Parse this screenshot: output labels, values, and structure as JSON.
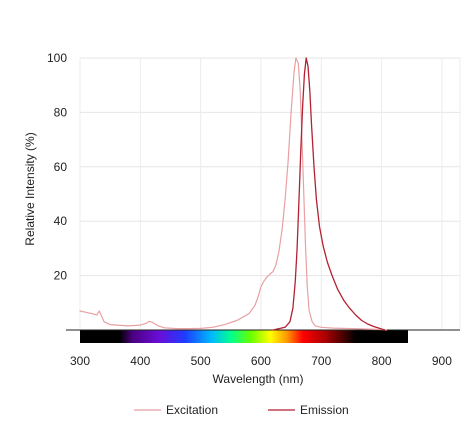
{
  "chart_data": {
    "type": "line",
    "title": "",
    "xlabel": "Wavelength (nm)",
    "ylabel": "Relative Intensity (%)",
    "xlim": [
      300,
      930
    ],
    "ylim": [
      0,
      100
    ],
    "x_ticks": [
      300,
      400,
      500,
      600,
      700,
      800,
      900
    ],
    "y_ticks": [
      20,
      40,
      60,
      80,
      100
    ],
    "grid": true,
    "legend_position": "bottom",
    "spectrum_bar": true,
    "series": [
      {
        "name": "Excitation",
        "color": "#e8a0a3",
        "points": [
          [
            300,
            7
          ],
          [
            310,
            6.5
          ],
          [
            320,
            6
          ],
          [
            328,
            5.5
          ],
          [
            332,
            7
          ],
          [
            336,
            5
          ],
          [
            340,
            3
          ],
          [
            350,
            2
          ],
          [
            380,
            1.5
          ],
          [
            400,
            1.8
          ],
          [
            410,
            2.5
          ],
          [
            415,
            3.2
          ],
          [
            420,
            2.8
          ],
          [
            430,
            1.5
          ],
          [
            440,
            0.8
          ],
          [
            460,
            0.5
          ],
          [
            480,
            0.5
          ],
          [
            500,
            0.6
          ],
          [
            520,
            1
          ],
          [
            540,
            2
          ],
          [
            560,
            3.5
          ],
          [
            580,
            6
          ],
          [
            590,
            9
          ],
          [
            595,
            12
          ],
          [
            600,
            16
          ],
          [
            605,
            18
          ],
          [
            610,
            19.5
          ],
          [
            615,
            20.5
          ],
          [
            620,
            21.5
          ],
          [
            625,
            24
          ],
          [
            630,
            29
          ],
          [
            635,
            37
          ],
          [
            640,
            48
          ],
          [
            645,
            62
          ],
          [
            650,
            80
          ],
          [
            655,
            95
          ],
          [
            658,
            100
          ],
          [
            662,
            98
          ],
          [
            665,
            88
          ],
          [
            668,
            70
          ],
          [
            671,
            50
          ],
          [
            674,
            30
          ],
          [
            677,
            15
          ],
          [
            680,
            7
          ],
          [
            685,
            3
          ],
          [
            690,
            1.5
          ],
          [
            700,
            1
          ],
          [
            720,
            0.7
          ],
          [
            750,
            0.5
          ],
          [
            800,
            0.2
          ],
          [
            808,
            0
          ]
        ]
      },
      {
        "name": "Emission",
        "color": "#b22232",
        "points": [
          [
            620,
            0
          ],
          [
            630,
            0.5
          ],
          [
            640,
            1
          ],
          [
            648,
            3
          ],
          [
            653,
            8
          ],
          [
            657,
            18
          ],
          [
            660,
            30
          ],
          [
            663,
            48
          ],
          [
            666,
            66
          ],
          [
            669,
            82
          ],
          [
            672,
            94
          ],
          [
            675,
            100
          ],
          [
            678,
            97
          ],
          [
            681,
            88
          ],
          [
            684,
            75
          ],
          [
            688,
            60
          ],
          [
            692,
            48
          ],
          [
            697,
            38
          ],
          [
            703,
            31
          ],
          [
            710,
            25
          ],
          [
            718,
            20
          ],
          [
            727,
            15
          ],
          [
            737,
            11
          ],
          [
            747,
            8
          ],
          [
            757,
            5.5
          ],
          [
            767,
            3.5
          ],
          [
            777,
            2.2
          ],
          [
            787,
            1.3
          ],
          [
            797,
            0.6
          ],
          [
            805,
            0
          ]
        ]
      }
    ]
  }
}
